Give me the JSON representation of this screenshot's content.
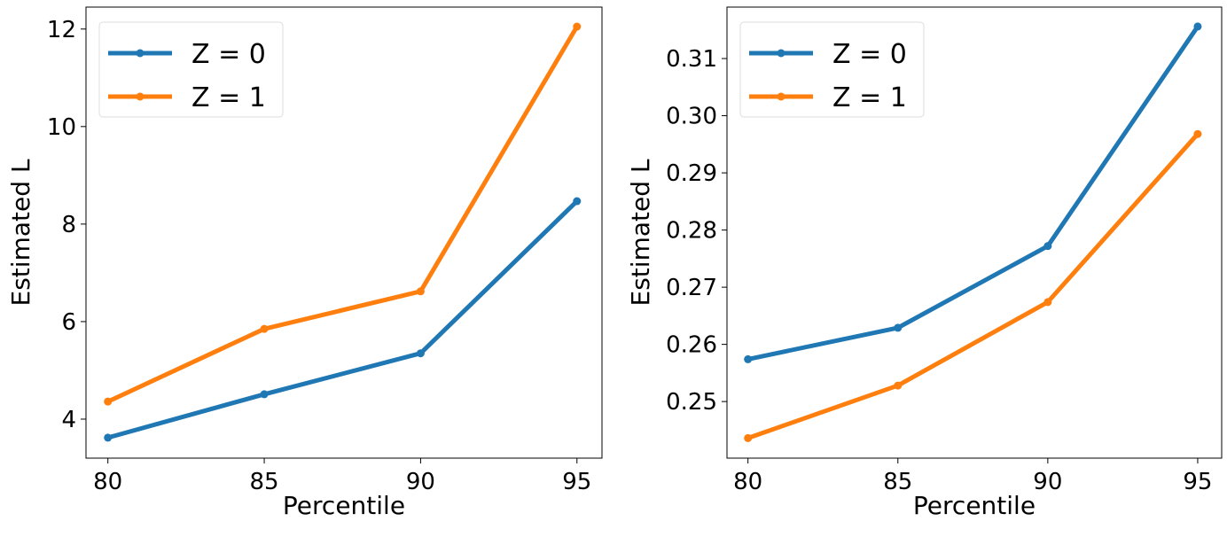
{
  "chart_data": [
    {
      "type": "line",
      "title": "",
      "xlabel": "Percentile",
      "ylabel": "Estimated L",
      "x": [
        80,
        85,
        90,
        95
      ],
      "xticks": [
        "80",
        "85",
        "90",
        "95"
      ],
      "yticks": [
        "4",
        "6",
        "8",
        "10",
        "12"
      ],
      "xlim": [
        79.3,
        95.8
      ],
      "ylim": [
        3.2,
        12.45
      ],
      "grid": false,
      "legend_position": "top-left",
      "series": [
        {
          "name": "Z = 0",
          "color": "#1f77b4",
          "values": [
            3.62,
            4.51,
            5.35,
            8.47
          ]
        },
        {
          "name": "Z = 1",
          "color": "#ff7f0e",
          "values": [
            4.36,
            5.85,
            6.62,
            12.05
          ]
        }
      ]
    },
    {
      "type": "line",
      "title": "",
      "xlabel": "Percentile",
      "ylabel": "Estimated L",
      "x": [
        80,
        85,
        90,
        95
      ],
      "xticks": [
        "80",
        "85",
        "90",
        "95"
      ],
      "yticks": [
        "0.25",
        "0.26",
        "0.27",
        "0.28",
        "0.29",
        "0.30",
        "0.31"
      ],
      "xlim": [
        79.3,
        95.8
      ],
      "ylim": [
        0.2401,
        0.319
      ],
      "grid": false,
      "legend_position": "top-left",
      "series": [
        {
          "name": "Z = 0",
          "color": "#1f77b4",
          "values": [
            0.2574,
            0.2629,
            0.2772,
            0.3156
          ]
        },
        {
          "name": "Z = 1",
          "color": "#ff7f0e",
          "values": [
            0.2436,
            0.2528,
            0.2674,
            0.2968
          ]
        }
      ]
    }
  ]
}
